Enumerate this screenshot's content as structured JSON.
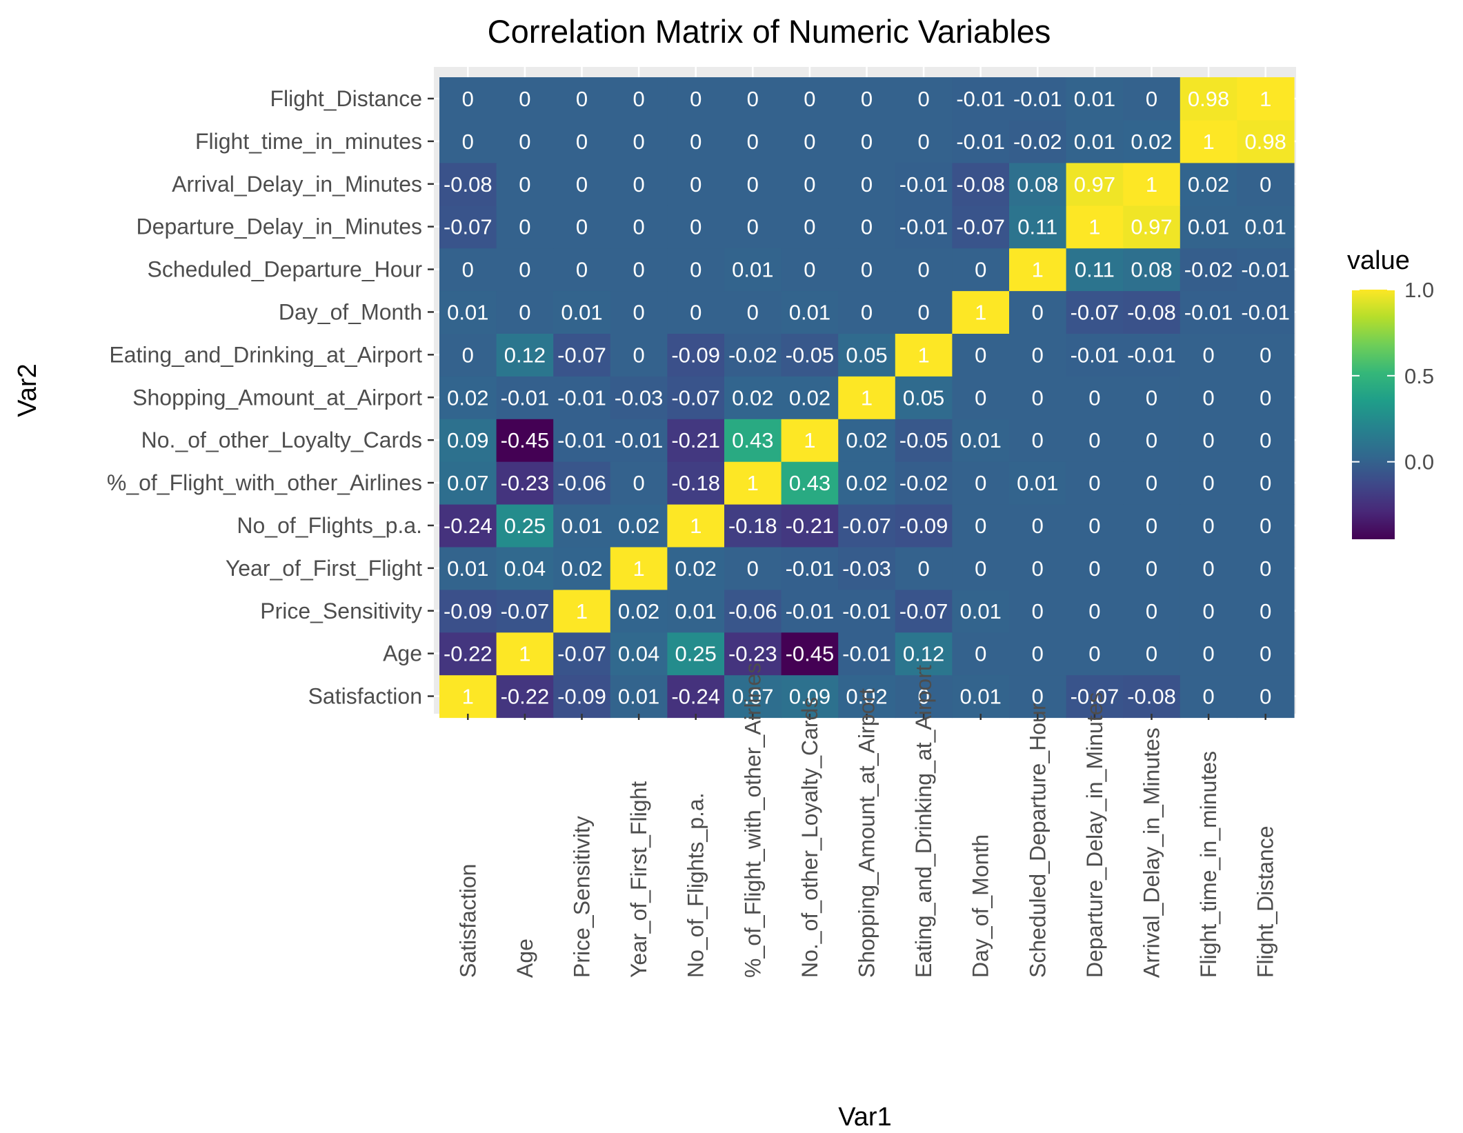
{
  "chart_data": {
    "type": "heatmap",
    "title": "Correlation Matrix of Numeric Variables",
    "xlabel": "Var1",
    "ylabel": "Var2",
    "variables": [
      "Satisfaction",
      "Age",
      "Price_Sensitivity",
      "Year_of_First_Flight",
      "No_of_Flights_p.a.",
      "%_of_Flight_with_other_Airlines",
      "No._of_other_Loyalty_Cards",
      "Shopping_Amount_at_Airport",
      "Eating_and_Drinking_at_Airport",
      "Day_of_Month",
      "Scheduled_Departure_Hour",
      "Departure_Delay_in_Minutes",
      "Arrival_Delay_in_Minutes",
      "Flight_time_in_minutes",
      "Flight_Distance"
    ],
    "matrix": [
      [
        1,
        -0.22,
        -0.09,
        0.01,
        -0.24,
        0.07,
        0.09,
        0.02,
        0,
        0.01,
        0,
        -0.07,
        -0.08,
        0,
        0
      ],
      [
        -0.22,
        1,
        -0.07,
        0.04,
        0.25,
        -0.23,
        -0.45,
        -0.01,
        0.12,
        0,
        0,
        0,
        0,
        0,
        0
      ],
      [
        -0.09,
        -0.07,
        1,
        0.02,
        0.01,
        -0.06,
        -0.01,
        -0.01,
        -0.07,
        0.01,
        0,
        0,
        0,
        0,
        0
      ],
      [
        0.01,
        0.04,
        0.02,
        1,
        0.02,
        0,
        -0.01,
        -0.03,
        0,
        0,
        0,
        0,
        0,
        0,
        0
      ],
      [
        -0.24,
        0.25,
        0.01,
        0.02,
        1,
        -0.18,
        -0.21,
        -0.07,
        -0.09,
        0,
        0,
        0,
        0,
        0,
        0
      ],
      [
        0.07,
        -0.23,
        -0.06,
        0,
        -0.18,
        1,
        0.43,
        0.02,
        -0.02,
        0,
        0.01,
        0,
        0,
        0,
        0
      ],
      [
        0.09,
        -0.45,
        -0.01,
        -0.01,
        -0.21,
        0.43,
        1,
        0.02,
        -0.05,
        0.01,
        0,
        0,
        0,
        0,
        0
      ],
      [
        0.02,
        -0.01,
        -0.01,
        -0.03,
        -0.07,
        0.02,
        0.02,
        1,
        0.05,
        0,
        0,
        0,
        0,
        0,
        0
      ],
      [
        0,
        0.12,
        -0.07,
        0,
        -0.09,
        -0.02,
        -0.05,
        0.05,
        1,
        0,
        0,
        -0.01,
        -0.01,
        0,
        0
      ],
      [
        0.01,
        0,
        0.01,
        0,
        0,
        0,
        0.01,
        0,
        0,
        1,
        0,
        -0.07,
        -0.08,
        -0.01,
        -0.01
      ],
      [
        0,
        0,
        0,
        0,
        0,
        0.01,
        0,
        0,
        0,
        0,
        1,
        0.11,
        0.08,
        -0.02,
        -0.01
      ],
      [
        -0.07,
        0,
        0,
        0,
        0,
        0,
        0,
        0,
        -0.01,
        -0.07,
        0.11,
        1,
        0.97,
        0.01,
        0.01
      ],
      [
        -0.08,
        0,
        0,
        0,
        0,
        0,
        0,
        0,
        -0.01,
        -0.08,
        0.08,
        0.97,
        1,
        0.02,
        0
      ],
      [
        0,
        0,
        0,
        0,
        0,
        0,
        0,
        0,
        0,
        -0.01,
        -0.02,
        0.01,
        0.02,
        1,
        0.98
      ],
      [
        0,
        0,
        0,
        0,
        0,
        0,
        0,
        0,
        0,
        -0.01,
        -0.01,
        0.01,
        0,
        0.98,
        1
      ]
    ],
    "legend": {
      "title": "value",
      "ticks": [
        0.0,
        0.5,
        1.0
      ],
      "tick_labels": [
        "0.0",
        "0.5",
        "1.0"
      ],
      "range": [
        -0.45,
        1.0
      ],
      "colormap": "viridis",
      "placement": "right"
    },
    "grid": true,
    "panel_background": "#ebebeb"
  }
}
